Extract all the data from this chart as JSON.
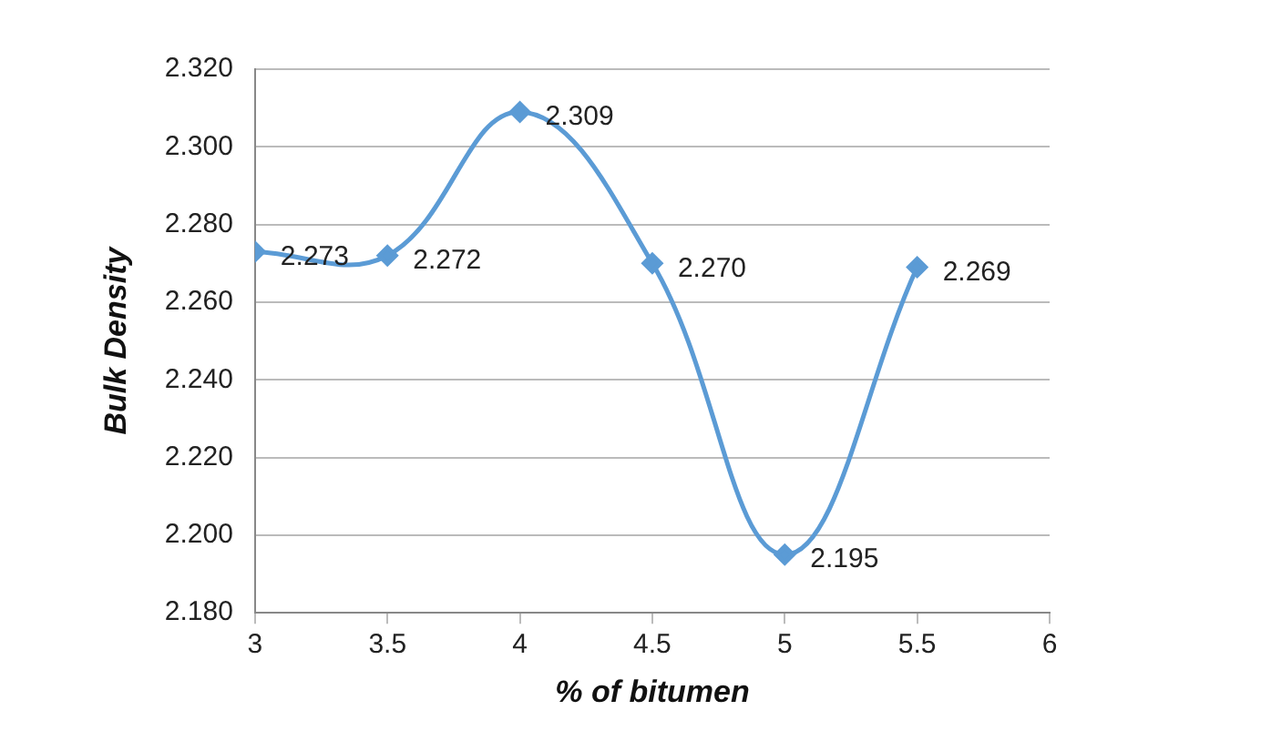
{
  "chart_data": {
    "type": "line",
    "xlabel": "% of bitumen",
    "ylabel": "Bulk Density",
    "x": [
      3,
      3.5,
      4,
      4.5,
      5,
      5.5
    ],
    "series": [
      {
        "color": "#5b9bd5",
        "values": [
          2.273,
          2.272,
          2.309,
          2.27,
          2.195,
          2.269
        ],
        "value_labels": [
          "2.273",
          "2.272",
          "2.309",
          "2.270",
          "2.195",
          "2.269"
        ]
      }
    ],
    "xlim": [
      3,
      6
    ],
    "xticks": [
      3,
      3.5,
      4,
      4.5,
      5,
      5.5,
      6
    ],
    "ylim": [
      2.18,
      2.32
    ],
    "yticks": [
      {
        "value": 2.18,
        "label": "2.180"
      },
      {
        "value": 2.2,
        "label": "2.200"
      },
      {
        "value": 2.22,
        "label": "2.220"
      },
      {
        "value": 2.24,
        "label": "2.240"
      },
      {
        "value": 2.26,
        "label": "2.260"
      },
      {
        "value": 2.28,
        "label": "2.280"
      },
      {
        "value": 2.3,
        "label": "2.300"
      },
      {
        "value": 2.32,
        "label": "2.320"
      }
    ],
    "grid": "y",
    "legend": false,
    "marker": "diamond",
    "line_style": "solid"
  }
}
